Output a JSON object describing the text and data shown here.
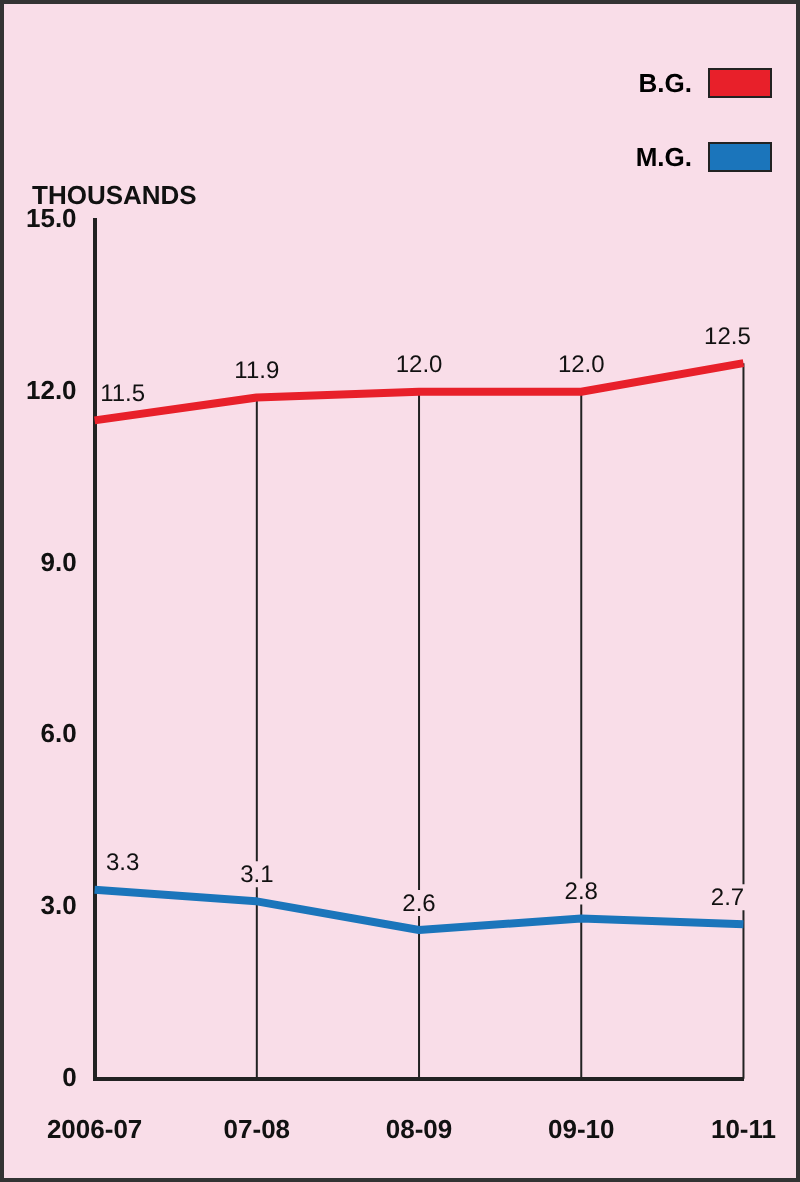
{
  "chart_data": {
    "type": "line",
    "ylabel": "THOUSANDS",
    "categories": [
      "2006-07",
      "07-08",
      "08-09",
      "09-10",
      "10-11"
    ],
    "series": [
      {
        "name": "B.G.",
        "color": "#e8202a",
        "values": [
          11.5,
          11.9,
          12.0,
          12.0,
          12.5
        ],
        "value_labels": [
          "11.5",
          "11.9",
          "12.0",
          "12.0",
          "12.5"
        ]
      },
      {
        "name": "M.G.",
        "color": "#1b75bb",
        "values": [
          3.3,
          3.1,
          2.6,
          2.8,
          2.7
        ],
        "value_labels": [
          "3.3",
          "3.1",
          "2.6",
          "2.8",
          "2.7"
        ]
      }
    ],
    "ylim": [
      0,
      15
    ],
    "yticks": [
      {
        "value": 0,
        "label": "0"
      },
      {
        "value": 3,
        "label": "3.0"
      },
      {
        "value": 6,
        "label": "6.0"
      },
      {
        "value": 9,
        "label": "9.0"
      },
      {
        "value": 12,
        "label": "12.0"
      },
      {
        "value": 15,
        "label": "15.0"
      }
    ],
    "grid": "x",
    "legend": "top right",
    "marker": "none",
    "line_style": "solid"
  }
}
